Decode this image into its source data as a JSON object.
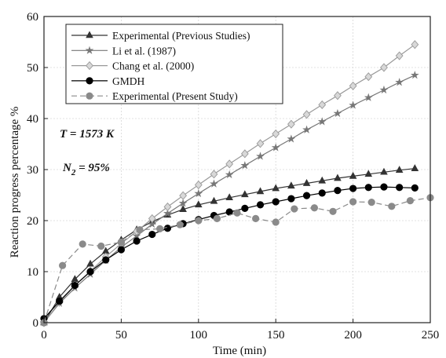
{
  "chart_data": {
    "type": "line",
    "xlabel": "Time (min)",
    "ylabel": "Reaction progress percentage %",
    "xlim": [
      0,
      250
    ],
    "ylim": [
      0,
      60
    ],
    "xticks": [
      0,
      50,
      100,
      150,
      200,
      250
    ],
    "yticks": [
      0,
      10,
      20,
      30,
      40,
      50,
      60
    ],
    "grid": true,
    "legend_position": "top-left",
    "annotations": [
      {
        "text": "T = 1573 K"
      },
      {
        "text": "N",
        "sub": "2",
        "suffix": " = 95%"
      }
    ],
    "series": [
      {
        "name": "Experimental (Previous Studies)",
        "marker": "triangle",
        "color": "#333333",
        "dashed": false,
        "x": [
          0,
          10,
          20,
          30,
          40,
          50,
          60,
          70,
          80,
          90,
          100,
          110,
          120,
          130,
          140,
          150,
          160,
          170,
          180,
          190,
          200,
          210,
          220,
          230,
          240
        ],
        "y": [
          0,
          5,
          8.5,
          11.5,
          14,
          16.2,
          18.2,
          19.8,
          21.1,
          22.2,
          23.1,
          23.8,
          24.5,
          25.1,
          25.7,
          26.3,
          26.8,
          27.3,
          27.8,
          28.3,
          28.7,
          29.1,
          29.5,
          29.9,
          30.2
        ]
      },
      {
        "name": "Li et al. (1987)",
        "marker": "star",
        "color": "#777777",
        "dashed": false,
        "x": [
          0,
          10,
          20,
          30,
          40,
          50,
          60,
          70,
          80,
          90,
          100,
          110,
          120,
          130,
          140,
          150,
          160,
          170,
          180,
          190,
          200,
          210,
          220,
          230,
          240
        ],
        "y": [
          0,
          3.8,
          6.8,
          9.5,
          12.2,
          14.8,
          17,
          19.3,
          21.4,
          23.4,
          25.3,
          27.2,
          29,
          30.8,
          32.6,
          34.3,
          36,
          37.8,
          39.4,
          41,
          42.6,
          44.1,
          45.6,
          47.1,
          48.5
        ]
      },
      {
        "name": "Chang et al. (2000)",
        "marker": "diamond",
        "color": "#999999",
        "dashed": false,
        "x": [
          0,
          10,
          20,
          30,
          40,
          50,
          60,
          70,
          80,
          90,
          100,
          110,
          120,
          130,
          140,
          150,
          160,
          170,
          180,
          190,
          200,
          210,
          220,
          230,
          240
        ],
        "y": [
          0,
          4,
          7.3,
          10.1,
          12.9,
          15.5,
          17.9,
          20.4,
          22.7,
          24.9,
          27,
          29.1,
          31.1,
          33.1,
          35.1,
          37,
          38.9,
          40.8,
          42.7,
          44.5,
          46.4,
          48.2,
          50,
          52.3,
          54.5
        ]
      },
      {
        "name": "GMDH",
        "marker": "circle",
        "color": "#000000",
        "dashed": false,
        "x": [
          0,
          10,
          20,
          30,
          40,
          50,
          60,
          70,
          80,
          90,
          100,
          110,
          120,
          130,
          140,
          150,
          160,
          170,
          180,
          190,
          200,
          210,
          220,
          230,
          240
        ],
        "y": [
          0.8,
          4.2,
          7.3,
          10,
          12.3,
          14.3,
          16,
          17.3,
          18.5,
          19.4,
          20.2,
          21,
          21.7,
          22.4,
          23.1,
          23.7,
          24.3,
          24.9,
          25.4,
          25.9,
          26.3,
          26.5,
          26.6,
          26.5,
          26.4
        ]
      },
      {
        "name": "Experimental (Present Study)",
        "marker": "circle",
        "color": "#8a8a8a",
        "dashed": true,
        "x": [
          0,
          12,
          25,
          37,
          50,
          62,
          75,
          88,
          100,
          112,
          125,
          137,
          150,
          162,
          175,
          187,
          200,
          212,
          225,
          237,
          250
        ],
        "y": [
          0,
          11.2,
          15.4,
          15,
          15.8,
          18.2,
          18.4,
          19.2,
          20,
          20.4,
          21.5,
          20.4,
          19.7,
          22.3,
          22.5,
          21.8,
          23.7,
          23.6,
          22.8,
          23.9,
          24.5
        ]
      }
    ]
  }
}
